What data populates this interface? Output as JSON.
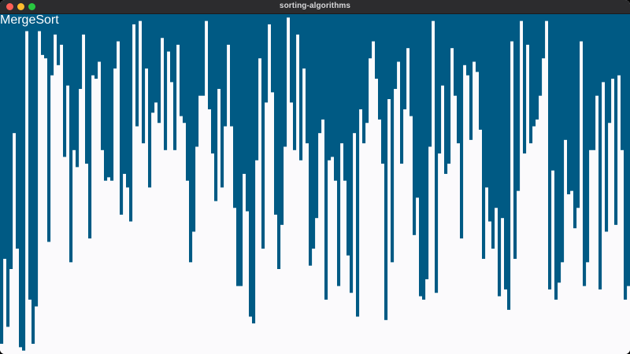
{
  "window": {
    "title": "sorting-algorithms"
  },
  "algorithm": {
    "name": "MergeSort"
  },
  "colors": {
    "bar": "#005a84",
    "background": "#fbfafc"
  },
  "bars": {
    "count": 200,
    "max": 100,
    "values": [
      97,
      72,
      92,
      75,
      35,
      69,
      98,
      99,
      5,
      84,
      97,
      86,
      5,
      12,
      13,
      67,
      18,
      6,
      15,
      9,
      42,
      21,
      73,
      40,
      45,
      22,
      6,
      44,
      66,
      18,
      19,
      14,
      40,
      49,
      48,
      49,
      16,
      8,
      59,
      47,
      51,
      61,
      3,
      33,
      2,
      38,
      16,
      51,
      29,
      26,
      32,
      7,
      40,
      11,
      20,
      40,
      9,
      30,
      32,
      49,
      73,
      64,
      39,
      24,
      24,
      2,
      28,
      41,
      55,
      22,
      51,
      33,
      9,
      33,
      57,
      80,
      80,
      47,
      58,
      89,
      91,
      43,
      13,
      69,
      26,
      3,
      23,
      59,
      75,
      62,
      39,
      1,
      26,
      40,
      6,
      43,
      16,
      38,
      74,
      69,
      60,
      35,
      31,
      84,
      43,
      42,
      49,
      80,
      38,
      49,
      71,
      82,
      35,
      89,
      28,
      38,
      32,
      13,
      8,
      19,
      31,
      44,
      90,
      25,
      73,
      22,
      14,
      44,
      28,
      10,
      30,
      65,
      54,
      83,
      84,
      78,
      39,
      2,
      82,
      41,
      21,
      47,
      44,
      10,
      24,
      38,
      66,
      15,
      18,
      37,
      14,
      17,
      34,
      72,
      51,
      61,
      69,
      57,
      83,
      60,
      81,
      87,
      8,
      72,
      52,
      2,
      41,
      9,
      38,
      33,
      31,
      24,
      13,
      2,
      81,
      46,
      84,
      79,
      73,
      37,
      53,
      52,
      63,
      57,
      8,
      80,
      73,
      40,
      40,
      24,
      81,
      20,
      64,
      32,
      19,
      62,
      18,
      40,
      84,
      80
    ]
  }
}
